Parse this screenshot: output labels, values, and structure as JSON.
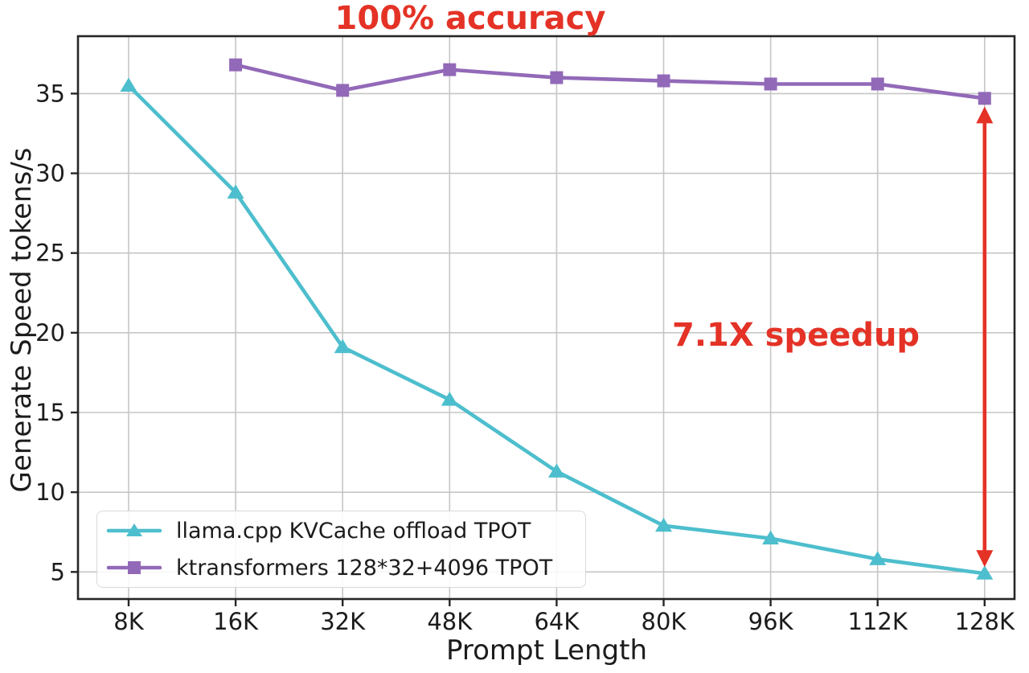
{
  "chart_data": {
    "type": "line",
    "title": "100% accuracy",
    "xlabel": "Prompt Length",
    "ylabel": "Generate Speed tokens/s",
    "categories": [
      "8K",
      "16K",
      "32K",
      "48K",
      "64K",
      "80K",
      "96K",
      "112K",
      "128K"
    ],
    "y_ticks": [
      5,
      10,
      15,
      20,
      25,
      30,
      35
    ],
    "ylim": [
      3.3,
      38.6
    ],
    "grid": true,
    "legend_position": "lower-left",
    "series": [
      {
        "name": "llama.cpp KVCache offload TPOT",
        "color": "#4dbecd",
        "marker": "triangle",
        "values": [
          35.5,
          28.8,
          19.1,
          15.8,
          11.3,
          7.9,
          7.1,
          5.8,
          4.9
        ]
      },
      {
        "name": "ktransformers 128*32+4096 TPOT",
        "color": "#9269b8",
        "marker": "square",
        "values": [
          null,
          36.8,
          35.2,
          36.5,
          36.0,
          35.8,
          35.6,
          35.6,
          34.7
        ]
      }
    ],
    "annotations": [
      {
        "text": "100% accuracy",
        "role": "title",
        "color": "#e43226"
      },
      {
        "text": "7.1X speedup",
        "role": "speedup-label",
        "color": "#e43226"
      }
    ],
    "speedup_arrow": {
      "x_category": "128K",
      "from_value": 34.7,
      "to_value": 4.9,
      "color": "#e43226"
    }
  },
  "colors": {
    "accent_red": "#e43226",
    "series_teal": "#4dbecd",
    "series_purple": "#9269b8",
    "grid": "#c6c6c6",
    "frame": "#262626",
    "text": "#1c1c1c"
  }
}
